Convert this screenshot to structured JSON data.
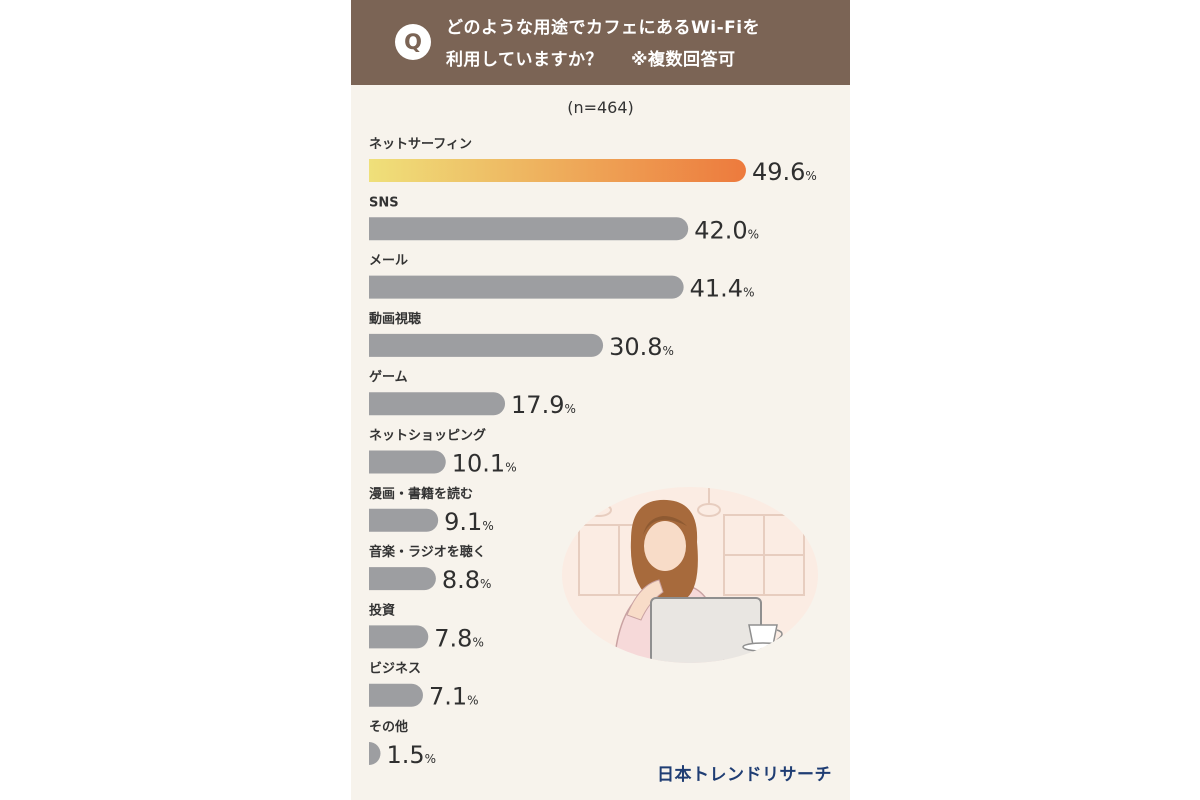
{
  "header": {
    "badge": "Q",
    "question_line1": "どのような用途でカフェにあるWi-Fiを",
    "question_line2": "利用していますか？",
    "note": "※複数回答可"
  },
  "sample_size": "(n=464)",
  "brand": "日本トレンドリサーチ",
  "colors": {
    "header_bg": "#7b6455",
    "card_bg": "#f7f3ec",
    "bar_gray": "#9d9ea1",
    "highlight_start": "#efe07a",
    "highlight_end": "#ed7a3d",
    "highlight_text": "#ee7a3e",
    "brand_text": "#1f3d73"
  },
  "chart_data": {
    "type": "bar",
    "orientation": "horizontal",
    "unit": "%",
    "xlim": [
      0,
      60
    ],
    "categories": [
      "ネットサーフィン",
      "SNS",
      "メール",
      "動画視聴",
      "ゲーム",
      "ネットショッピング",
      "漫画・書籍を読む",
      "音楽・ラジオを聴く",
      "投資",
      "ビジネス",
      "その他"
    ],
    "values": [
      49.6,
      42.0,
      41.4,
      30.8,
      17.9,
      10.1,
      9.1,
      8.8,
      7.8,
      7.1,
      1.5
    ],
    "value_labels": [
      "49.6",
      "42.0",
      "41.4",
      "30.8",
      "17.9",
      "10.1",
      "9.1",
      "8.8",
      "7.8",
      "7.1",
      "1.5"
    ],
    "highlight_index": 0,
    "grid": false,
    "legend": "none"
  }
}
